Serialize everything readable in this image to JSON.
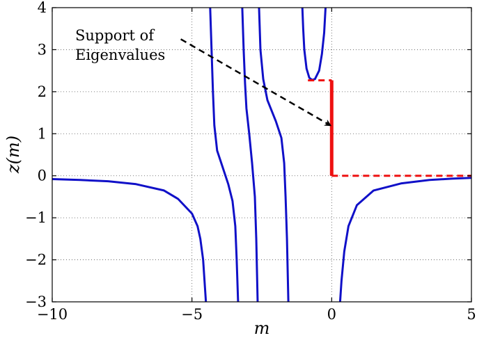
{
  "chart_data": {
    "type": "line",
    "xlabel": "m",
    "ylabel": "z(m)",
    "xlim": [
      -10,
      5
    ],
    "ylim": [
      -3,
      4
    ],
    "xticks": [
      -10,
      -5,
      0,
      5
    ],
    "yticks": [
      -3,
      -2,
      -1,
      0,
      1,
      2,
      3,
      4
    ],
    "xtick_labels": [
      "−10",
      "−5",
      "0",
      "5"
    ],
    "ytick_labels": [
      "−3",
      "−2",
      "−1",
      "0",
      "1",
      "2",
      "3",
      "4"
    ],
    "grid": true,
    "grid_style": "dotted",
    "colors": {
      "curve": "#1010c8",
      "support": "#ee1111",
      "arrow": "#000000"
    },
    "series": [
      {
        "style": "solid",
        "color": "#1010c8",
        "points": [
          [
            -10,
            -0.08
          ],
          [
            -9,
            -0.1
          ],
          [
            -8,
            -0.13
          ],
          [
            -7,
            -0.2
          ],
          [
            -6,
            -0.35
          ],
          [
            -5.5,
            -0.55
          ],
          [
            -5,
            -0.9
          ],
          [
            -4.8,
            -1.2
          ],
          [
            -4.7,
            -1.5
          ],
          [
            -4.6,
            -2.0
          ],
          [
            -4.55,
            -2.5
          ],
          [
            -4.5,
            -3
          ]
        ]
      },
      {
        "style": "solid",
        "color": "#1010c8",
        "points": [
          [
            -4.35,
            4
          ],
          [
            -4.3,
            3
          ],
          [
            -4.25,
            2
          ],
          [
            -4.2,
            1.2
          ],
          [
            -4.1,
            0.6
          ],
          [
            -3.9,
            0.2
          ],
          [
            -3.7,
            -0.2
          ],
          [
            -3.55,
            -0.6
          ],
          [
            -3.45,
            -1.2
          ],
          [
            -3.4,
            -2.0
          ],
          [
            -3.35,
            -3
          ]
        ]
      },
      {
        "style": "solid",
        "color": "#1010c8",
        "points": [
          [
            -3.2,
            4
          ],
          [
            -3.15,
            3
          ],
          [
            -3.1,
            2.2
          ],
          [
            -3.05,
            1.6
          ],
          [
            -2.95,
            1.0
          ],
          [
            -2.85,
            0.3
          ],
          [
            -2.75,
            -0.5
          ],
          [
            -2.7,
            -1.5
          ],
          [
            -2.65,
            -3
          ]
        ]
      },
      {
        "style": "solid",
        "color": "#1010c8",
        "points": [
          [
            -2.6,
            4
          ],
          [
            -2.55,
            3
          ],
          [
            -2.45,
            2.3
          ],
          [
            -2.3,
            1.8
          ],
          [
            -2.0,
            1.3
          ],
          [
            -1.8,
            0.9
          ],
          [
            -1.7,
            0.3
          ],
          [
            -1.65,
            -0.5
          ],
          [
            -1.6,
            -1.5
          ],
          [
            -1.55,
            -3
          ]
        ]
      },
      {
        "style": "solid",
        "color": "#1010c8",
        "points": [
          [
            -1.05,
            4
          ],
          [
            -1.02,
            3.5
          ],
          [
            -0.98,
            3.0
          ],
          [
            -0.9,
            2.55
          ],
          [
            -0.8,
            2.33
          ],
          [
            -0.7,
            2.28
          ],
          [
            -0.6,
            2.3
          ],
          [
            -0.45,
            2.5
          ],
          [
            -0.35,
            2.9
          ],
          [
            -0.27,
            3.4
          ],
          [
            -0.22,
            4
          ]
        ]
      },
      {
        "style": "solid",
        "color": "#1010c8",
        "points": [
          [
            0.3,
            -3
          ],
          [
            0.35,
            -2.5
          ],
          [
            0.45,
            -1.8
          ],
          [
            0.6,
            -1.2
          ],
          [
            0.9,
            -0.7
          ],
          [
            1.5,
            -0.35
          ],
          [
            2.5,
            -0.18
          ],
          [
            3.5,
            -0.1
          ],
          [
            4.3,
            -0.07
          ],
          [
            5,
            -0.05
          ]
        ]
      },
      {
        "style": "solid",
        "color": "#ee1111",
        "linewidth": "thick",
        "points": [
          [
            0,
            0
          ],
          [
            0,
            2.27
          ]
        ]
      },
      {
        "style": "dashed",
        "color": "#ee1111",
        "points": [
          [
            -0.85,
            2.27
          ],
          [
            0,
            2.27
          ]
        ]
      },
      {
        "style": "dashed",
        "color": "#ee1111",
        "points": [
          [
            0,
            0
          ],
          [
            5,
            0
          ]
        ]
      }
    ],
    "annotations": [
      {
        "text_lines": [
          "Support of",
          "Eigenvalues"
        ],
        "arrow_from": [
          -5.4,
          3.25
        ],
        "arrow_to": [
          -0.05,
          1.2
        ]
      }
    ]
  }
}
